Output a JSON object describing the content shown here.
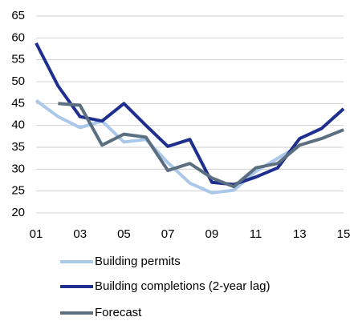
{
  "chart_data": {
    "type": "line",
    "categories": [
      "01",
      null,
      "03",
      null,
      "05",
      null,
      "07",
      null,
      "09",
      null,
      "11",
      null,
      "13",
      null,
      "15"
    ],
    "series": [
      {
        "name": "Building permits",
        "color": "#a9c8ea",
        "values": [
          45.7,
          42,
          39.5,
          41,
          36.2,
          36.8,
          31.5,
          26.8,
          24.6,
          25.2,
          29.5,
          32.5,
          35.5,
          null,
          null
        ]
      },
      {
        "name": "Building completions (2-year lag)",
        "color": "#1f2f8f",
        "values": [
          58.8,
          49,
          42,
          41,
          45,
          40,
          35.2,
          36.8,
          27,
          26.5,
          28.2,
          30.3,
          37,
          39.3,
          43.8
        ]
      },
      {
        "name": "Forecast",
        "color": "#5b6f80",
        "values": [
          null,
          45,
          44.6,
          35.5,
          38,
          37.3,
          29.7,
          31.3,
          28,
          26,
          30.3,
          31.3,
          35.5,
          37,
          39
        ]
      }
    ],
    "ylim": [
      20,
      65
    ],
    "yticks": [
      20,
      25,
      30,
      35,
      40,
      45,
      50,
      55,
      60,
      65
    ],
    "grid": true
  }
}
